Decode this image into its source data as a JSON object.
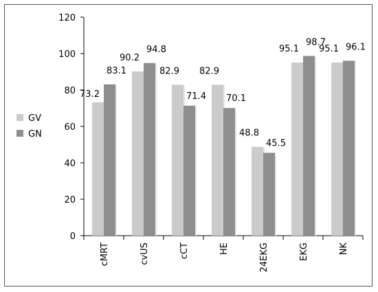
{
  "chart_data": {
    "type": "bar",
    "categories": [
      "cMRT",
      "cvUS",
      "cCT",
      "HE",
      "24EKG",
      "EKG",
      "NK"
    ],
    "series": [
      {
        "name": "GV",
        "values": [
          73.2,
          90.2,
          82.9,
          82.9,
          48.8,
          95.1,
          95.1
        ],
        "color": "#cbcbcb"
      },
      {
        "name": "GN",
        "values": [
          83.1,
          94.8,
          71.4,
          70.1,
          45.5,
          98.7,
          96.1
        ],
        "color": "#8e8e8e"
      }
    ],
    "data_labels": {
      "GV": [
        "73.2",
        "90.2",
        "82.9",
        "82.9",
        "48.8",
        "95.1",
        "95.1"
      ],
      "GN": [
        "83.1",
        "94.8",
        "71.4",
        "70.1",
        "45.5",
        "98.7",
        "96.1"
      ]
    },
    "title": "",
    "xlabel": "",
    "ylabel": "",
    "ylim": [
      0,
      120
    ],
    "yticks": [
      "0",
      "20",
      "40",
      "60",
      "80",
      "100",
      "120"
    ],
    "grid": false,
    "legend_position": "left",
    "x_tick_rotation": "vertical"
  }
}
